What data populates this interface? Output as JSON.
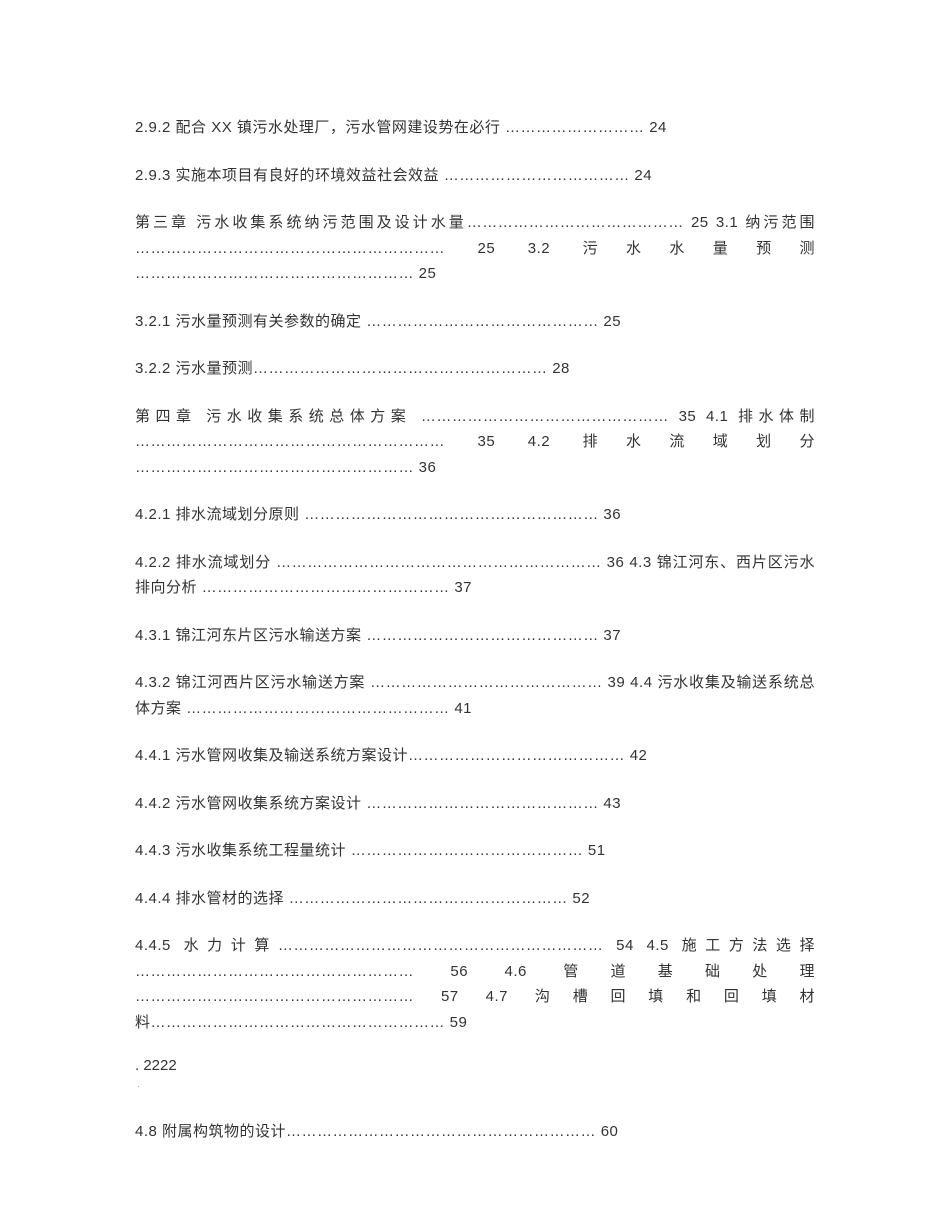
{
  "lines": [
    "2.9.2 配合 XX 镇污水处理厂，污水管网建设势在必行 ……………………… 24",
    "2.9.3 实施本项目有良好的环境效益社会效益 ……………………………… 24",
    "第三章 污水收集系统纳污范围及设计水量…………………………………… 25 3.1 纳污范围 …………………………………………………… 25 3.2 污水水量预测 ……………………………………………… 25",
    "3.2.1 污水量预测有关参数的确定 ……………………………………… 25",
    "3.2.2 污水量预测………………………………………………… 28",
    "第四章 污水收集系统总体方案 ………………………………………… 35 4.1 排水体制 …………………………………………………… 35 4.2 排水流域划分 ……………………………………………… 36",
    "4.2.1 排水流域划分原则 ………………………………………………… 36",
    "4.2.2 排水流域划分 ……………………………………………………… 36 4.3 锦江河东、西片区污水排向分析 ………………………………………… 37",
    "4.3.1 锦江河东片区污水输送方案 ……………………………………… 37",
    "4.3.2 锦江河西片区污水输送方案 ……………………………………… 39 4.4 污水收集及输送系统总体方案 …………………………………………… 41",
    "4.4.1 污水管网收集及输送系统方案设计…………………………………… 42",
    "4.4.2 污水管网收集系统方案设计 ……………………………………… 43",
    "4.4.3 污水收集系统工程量统计 ……………………………………… 51",
    "4.4.4 排水管材的选择 ……………………………………………… 52",
    "4.4.5 水力计算……………………………………………………… 54 4.5 施工方法选择 ……………………………………………… 56 4.6 管道基础处理 ……………………………………………… 57 4.7 沟槽回填和回填材料………………………………………………… 59"
  ],
  "page_marker": ". 2222",
  "tiny_dot": "·",
  "last_line": "4.8 附属构筑物的设计…………………………………………………… 60",
  "colors": {
    "background": "#ffffff",
    "text": "#333333"
  },
  "typography": {
    "font_family": "Microsoft YaHei",
    "font_size_pt": 11,
    "line_height": 1.7
  }
}
